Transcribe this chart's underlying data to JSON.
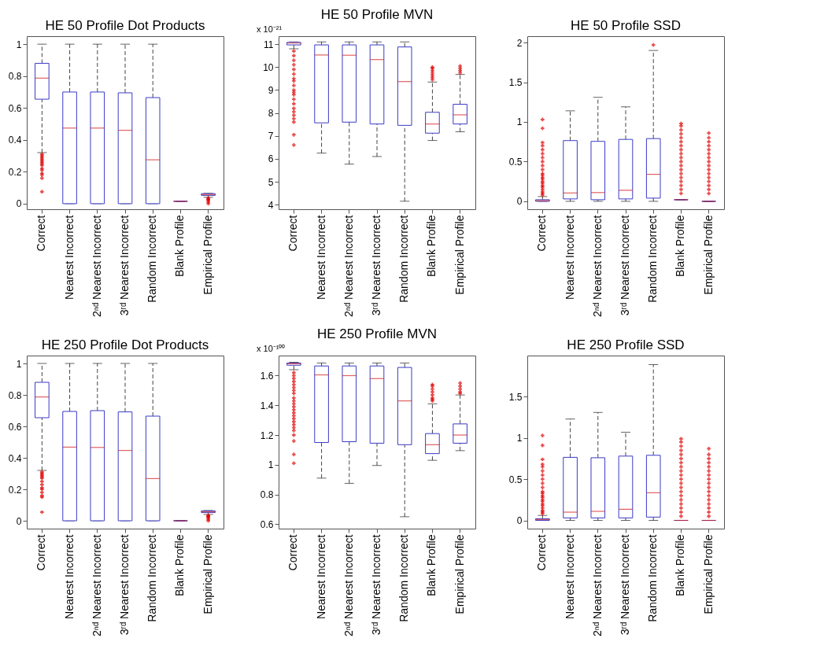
{
  "chart_data": [
    {
      "type": "box",
      "title": "HE 50 Profile Dot Products",
      "marker": "cross",
      "categories": [
        "Correct",
        "Nearest Incorrect",
        "2ⁿᵈ Nearest Incorrect",
        "3ʳᵈ Nearest Incorrect",
        "Random Incorrect",
        "Blank Profile",
        "Empirical Profile"
      ],
      "ylim": [
        -0.035,
        1.05
      ],
      "yticks": [
        0,
        0.2,
        0.4,
        0.6,
        0.8,
        1
      ],
      "boxes": [
        {
          "low": 0.32,
          "q1": 0.655,
          "median": 0.787,
          "q3": 0.88,
          "high": 1,
          "outliers": [
            0.31,
            0.3,
            0.29,
            0.28,
            0.27,
            0.26,
            0.25,
            0.24,
            0.22,
            0.21,
            0.19,
            0.18,
            0.16,
            0.075
          ]
        },
        {
          "low": 0,
          "q1": 0,
          "median": 0.474,
          "q3": 0.7,
          "high": 1
        },
        {
          "low": 0,
          "q1": 0,
          "median": 0.474,
          "q3": 0.7,
          "high": 1
        },
        {
          "low": 0,
          "q1": 0,
          "median": 0.46,
          "q3": 0.695,
          "high": 1
        },
        {
          "low": 0,
          "q1": 0,
          "median": 0.275,
          "q3": 0.665,
          "high": 1
        },
        {
          "low": 0.015,
          "q1": 0.015,
          "median": 0.015,
          "q3": 0.015,
          "high": 0.015
        },
        {
          "low": 0.04,
          "q1": 0.052,
          "median": 0.057,
          "q3": 0.063,
          "high": 0.065,
          "outliers": [
            0.035,
            0.03,
            0.025,
            0.02,
            0.01,
            0
          ]
        }
      ]
    },
    {
      "type": "box",
      "title": "HE 50 Profile MVN",
      "ylabel": "x 10⁻²¹",
      "marker": "cross",
      "categories": [
        "Correct",
        "Nearest Incorrect",
        "2ⁿᵈ Nearest Incorrect",
        "3ʳᵈ Nearest Incorrect",
        "Random Incorrect",
        "Blank Profile",
        "Empirical Profile"
      ],
      "ylim": [
        3.8,
        11.35
      ],
      "yticks": [
        4,
        5,
        6,
        7,
        8,
        9,
        10,
        11
      ],
      "boxes": [
        {
          "low": 10.8,
          "q1": 10.97,
          "median": 11.05,
          "q3": 11.08,
          "high": 11.1,
          "outliers": [
            10.7,
            10.5,
            10.3,
            10.1,
            9.9,
            9.7,
            9.5,
            9.4,
            9.2,
            9,
            8.9,
            8.8,
            8.6,
            8.4,
            8.2,
            8.05,
            7.9,
            7.75,
            7.6,
            7.05,
            6.6
          ]
        },
        {
          "low": 6.25,
          "q1": 7.57,
          "median": 10.53,
          "q3": 10.97,
          "high": 11.1
        },
        {
          "low": 5.77,
          "q1": 7.6,
          "median": 10.52,
          "q3": 10.97,
          "high": 11.1
        },
        {
          "low": 6.1,
          "q1": 7.52,
          "median": 10.33,
          "q3": 10.97,
          "high": 11.1
        },
        {
          "low": 4.15,
          "q1": 7.46,
          "median": 9.37,
          "q3": 10.88,
          "high": 11.1
        },
        {
          "low": 6.8,
          "q1": 7.12,
          "median": 7.52,
          "q3": 8.03,
          "high": 9.35,
          "outliers": [
            9.45,
            9.55,
            9.65,
            9.75,
            9.85,
            9.95,
            10
          ]
        },
        {
          "low": 7.18,
          "q1": 7.52,
          "median": 7.92,
          "q3": 8.38,
          "high": 9.68,
          "outliers": [
            9.75,
            9.85,
            9.95,
            10.05
          ]
        }
      ]
    },
    {
      "type": "box",
      "title": "HE 50 Profile SSD",
      "marker": "cross",
      "categories": [
        "Correct",
        "Nearest Incorrect",
        "2ⁿᵈ Nearest Incorrect",
        "3ʳᵈ Nearest Incorrect",
        "Random Incorrect",
        "Blank Profile",
        "Empirical Profile"
      ],
      "ylim": [
        -0.1,
        2.08
      ],
      "yticks": [
        0,
        0.5,
        1,
        1.5,
        2
      ],
      "boxes": [
        {
          "low": 0,
          "q1": 0,
          "median": 0.01,
          "q3": 0.02,
          "high": 0.06,
          "outliers": [
            0.08,
            0.1,
            0.12,
            0.15,
            0.18,
            0.2,
            0.23,
            0.25,
            0.28,
            0.3,
            0.33,
            0.35,
            0.4,
            0.45,
            0.5,
            0.55,
            0.6,
            0.65,
            0.7,
            0.74,
            0.92,
            1.03
          ]
        },
        {
          "low": 0,
          "q1": 0.03,
          "median": 0.105,
          "q3": 0.765,
          "high": 1.14
        },
        {
          "low": 0,
          "q1": 0.02,
          "median": 0.11,
          "q3": 0.755,
          "high": 1.31
        },
        {
          "low": 0,
          "q1": 0.03,
          "median": 0.14,
          "q3": 0.78,
          "high": 1.19
        },
        {
          "low": 0,
          "q1": 0.04,
          "median": 0.34,
          "q3": 0.79,
          "high": 1.9,
          "outliers": [
            1.97
          ]
        },
        {
          "low": 0.02,
          "q1": 0.02,
          "median": 0.02,
          "q3": 0.02,
          "high": 0.02,
          "outliers": [
            0.1,
            0.15,
            0.2,
            0.25,
            0.3,
            0.35,
            0.4,
            0.45,
            0.5,
            0.55,
            0.6,
            0.65,
            0.7,
            0.75,
            0.8,
            0.85,
            0.9,
            0.95,
            0.98
          ]
        },
        {
          "low": 0,
          "q1": 0,
          "median": 0,
          "q3": 0,
          "high": 0,
          "outliers": [
            0.1,
            0.15,
            0.2,
            0.25,
            0.3,
            0.35,
            0.4,
            0.45,
            0.5,
            0.55,
            0.6,
            0.65,
            0.7,
            0.75,
            0.8,
            0.86
          ]
        }
      ]
    },
    {
      "type": "box",
      "title": "HE 250 Profile Dot Products",
      "marker": "cross",
      "categories": [
        "Correct",
        "Nearest Incorrect",
        "2ⁿᵈ Nearest Incorrect",
        "3ʳᵈ Nearest Incorrect",
        "Random Incorrect",
        "Blank Profile",
        "Empirical Profile"
      ],
      "ylim": [
        -0.05,
        1.05
      ],
      "yticks": [
        0,
        0.2,
        0.4,
        0.6,
        0.8,
        1
      ],
      "boxes": [
        {
          "low": 0.32,
          "q1": 0.655,
          "median": 0.787,
          "q3": 0.88,
          "high": 1,
          "outliers": [
            0.31,
            0.3,
            0.29,
            0.28,
            0.27,
            0.25,
            0.23,
            0.21,
            0.2,
            0.18,
            0.16,
            0.15,
            0.055
          ]
        },
        {
          "low": 0,
          "q1": 0,
          "median": 0.468,
          "q3": 0.695,
          "high": 1
        },
        {
          "low": 0,
          "q1": 0,
          "median": 0.466,
          "q3": 0.7,
          "high": 1
        },
        {
          "low": 0,
          "q1": 0,
          "median": 0.447,
          "q3": 0.692,
          "high": 1
        },
        {
          "low": 0,
          "q1": 0,
          "median": 0.268,
          "q3": 0.665,
          "high": 1
        },
        {
          "low": 0,
          "q1": 0,
          "median": 0,
          "q3": 0,
          "high": 0
        },
        {
          "low": 0.04,
          "q1": 0.052,
          "median": 0.057,
          "q3": 0.063,
          "high": 0.065,
          "outliers": [
            0.035,
            0.03,
            0.025,
            0.02,
            0.01,
            0
          ]
        }
      ]
    },
    {
      "type": "box",
      "title": "HE 250 Profile MVN",
      "ylabel": "x 10⁻¹⁰⁰",
      "marker": "cross",
      "categories": [
        "Correct",
        "Nearest Incorrect",
        "2ⁿᵈ Nearest Incorrect",
        "3ʳᵈ Nearest Incorrect",
        "Random Incorrect",
        "Blank Profile",
        "Empirical Profile"
      ],
      "ylim": [
        0.57,
        1.735
      ],
      "yticks": [
        0.6,
        0.8,
        1,
        1.2,
        1.4,
        1.6
      ],
      "boxes": [
        {
          "low": 1.64,
          "q1": 1.67,
          "median": 1.68,
          "q3": 1.685,
          "high": 1.69,
          "outliers": [
            1.62,
            1.6,
            1.58,
            1.56,
            1.54,
            1.52,
            1.5,
            1.48,
            1.45,
            1.43,
            1.41,
            1.39,
            1.37,
            1.35,
            1.33,
            1.31,
            1.29,
            1.27,
            1.25,
            1.23,
            1.2,
            1.16,
            1.07,
            1.01
          ]
        },
        {
          "low": 0.91,
          "q1": 1.15,
          "median": 1.605,
          "q3": 1.665,
          "high": 1.685
        },
        {
          "low": 0.875,
          "q1": 1.155,
          "median": 1.6,
          "q3": 1.665,
          "high": 1.685
        },
        {
          "low": 0.995,
          "q1": 1.145,
          "median": 1.58,
          "q3": 1.665,
          "high": 1.685
        },
        {
          "low": 0.65,
          "q1": 1.135,
          "median": 1.43,
          "q3": 1.655,
          "high": 1.685
        },
        {
          "low": 1.03,
          "q1": 1.075,
          "median": 1.135,
          "q3": 1.21,
          "high": 1.41,
          "outliers": [
            1.43,
            1.44,
            1.45,
            1.47,
            1.49,
            1.51,
            1.53,
            1.54
          ]
        },
        {
          "low": 1.095,
          "q1": 1.145,
          "median": 1.2,
          "q3": 1.275,
          "high": 1.47,
          "outliers": [
            1.48,
            1.49,
            1.51,
            1.53,
            1.55
          ]
        }
      ]
    },
    {
      "type": "box",
      "title": "HE 250 Profile SSD",
      "marker": "cross",
      "categories": [
        "Correct",
        "Nearest Incorrect",
        "2ⁿᵈ Nearest Incorrect",
        "3ʳᵈ Nearest Incorrect",
        "Random Incorrect",
        "Blank Profile",
        "Empirical Profile"
      ],
      "ylim": [
        -0.1,
        2
      ],
      "yticks": [
        0,
        0.5,
        1,
        1.5
      ],
      "boxes": [
        {
          "low": 0,
          "q1": 0,
          "median": 0.01,
          "q3": 0.02,
          "high": 0.06,
          "outliers": [
            0.08,
            0.1,
            0.12,
            0.15,
            0.18,
            0.2,
            0.23,
            0.25,
            0.28,
            0.3,
            0.33,
            0.35,
            0.4,
            0.45,
            0.5,
            0.55,
            0.6,
            0.65,
            0.68,
            0.74,
            0.91,
            1.03
          ]
        },
        {
          "low": 0,
          "q1": 0.03,
          "median": 0.1,
          "q3": 0.765,
          "high": 1.23
        },
        {
          "low": 0,
          "q1": 0.03,
          "median": 0.11,
          "q3": 0.76,
          "high": 1.31
        },
        {
          "low": 0,
          "q1": 0.03,
          "median": 0.135,
          "q3": 0.78,
          "high": 1.07
        },
        {
          "low": 0,
          "q1": 0.04,
          "median": 0.335,
          "q3": 0.79,
          "high": 1.89
        },
        {
          "low": 0,
          "q1": 0,
          "median": 0,
          "q3": 0,
          "high": 0,
          "outliers": [
            0.05,
            0.1,
            0.15,
            0.2,
            0.25,
            0.3,
            0.35,
            0.4,
            0.45,
            0.5,
            0.55,
            0.6,
            0.65,
            0.7,
            0.75,
            0.8,
            0.85,
            0.9,
            0.95,
            0.99
          ]
        },
        {
          "low": 0,
          "q1": 0,
          "median": 0,
          "q3": 0,
          "high": 0,
          "outliers": [
            0.05,
            0.1,
            0.15,
            0.2,
            0.25,
            0.3,
            0.35,
            0.4,
            0.45,
            0.5,
            0.55,
            0.6,
            0.65,
            0.7,
            0.75,
            0.8,
            0.87
          ]
        }
      ]
    }
  ]
}
